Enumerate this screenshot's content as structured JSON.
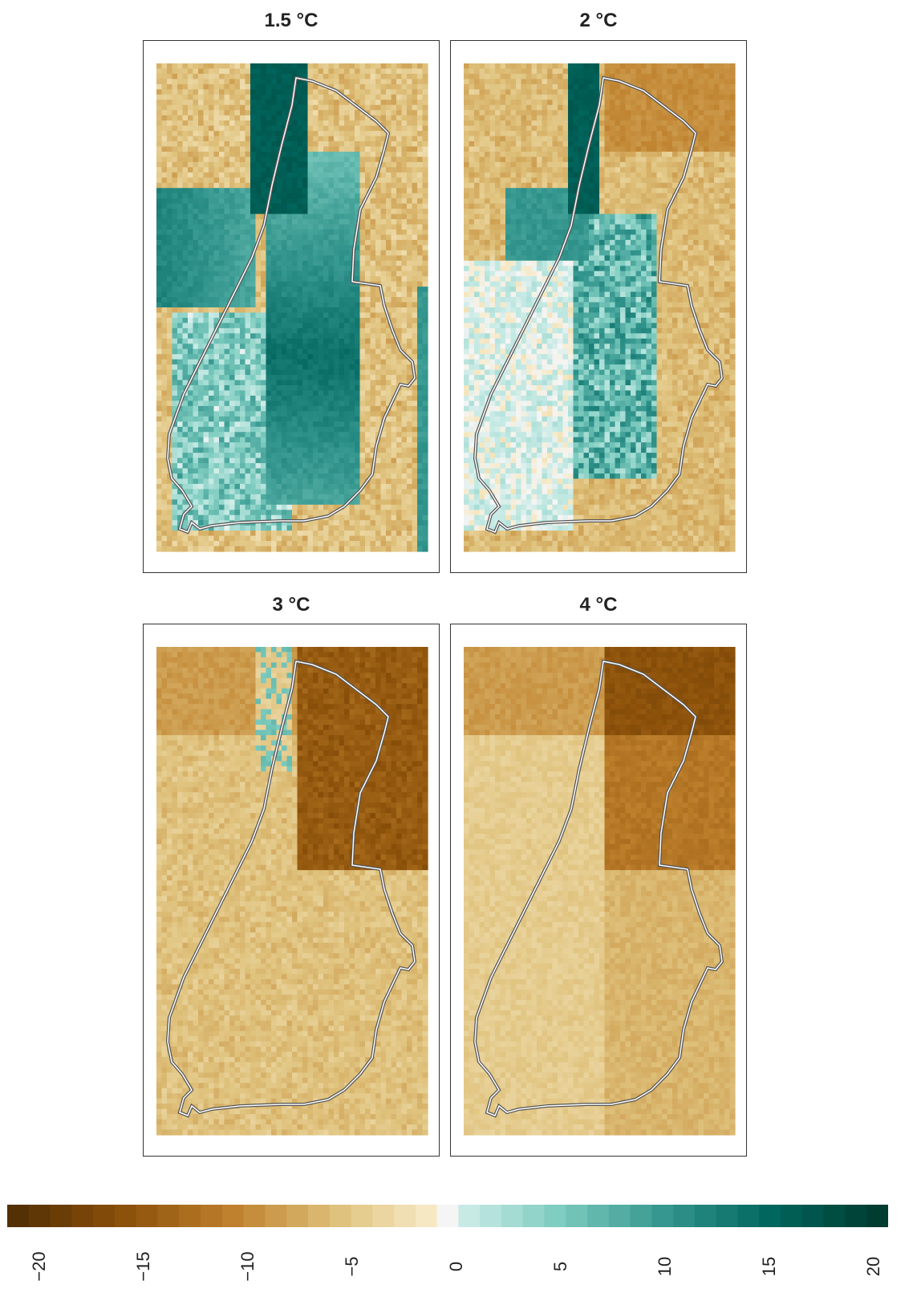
{
  "panels": [
    {
      "id": "p15",
      "title": "1.5 °C",
      "palette": "wet_strong",
      "seed": 11
    },
    {
      "id": "p2",
      "title": "2 °C",
      "palette": "wet_mid",
      "seed": 23
    },
    {
      "id": "p3",
      "title": "3 °C",
      "palette": "dry_mid",
      "seed": 37
    },
    {
      "id": "p4",
      "title": "4 °C",
      "palette": "dry_strong",
      "seed": 51
    }
  ],
  "colors": {
    "dry_dark": "#543005",
    "dry_mid": "#a6661c",
    "dry_light": "#dfc27d",
    "dry_pale": "#f6e8c3",
    "neutral": "#f5f5f5",
    "wet_pale": "#c7eae5",
    "wet_light": "#80cdc1",
    "wet_mid": "#35978f",
    "wet_dark": "#003c30",
    "outline": "#555555"
  },
  "legend": {
    "min": -20,
    "max": 20,
    "ticks": [
      "−20",
      "−15",
      "−10",
      "−5",
      "0",
      "5",
      "10",
      "15",
      "20"
    ]
  }
}
